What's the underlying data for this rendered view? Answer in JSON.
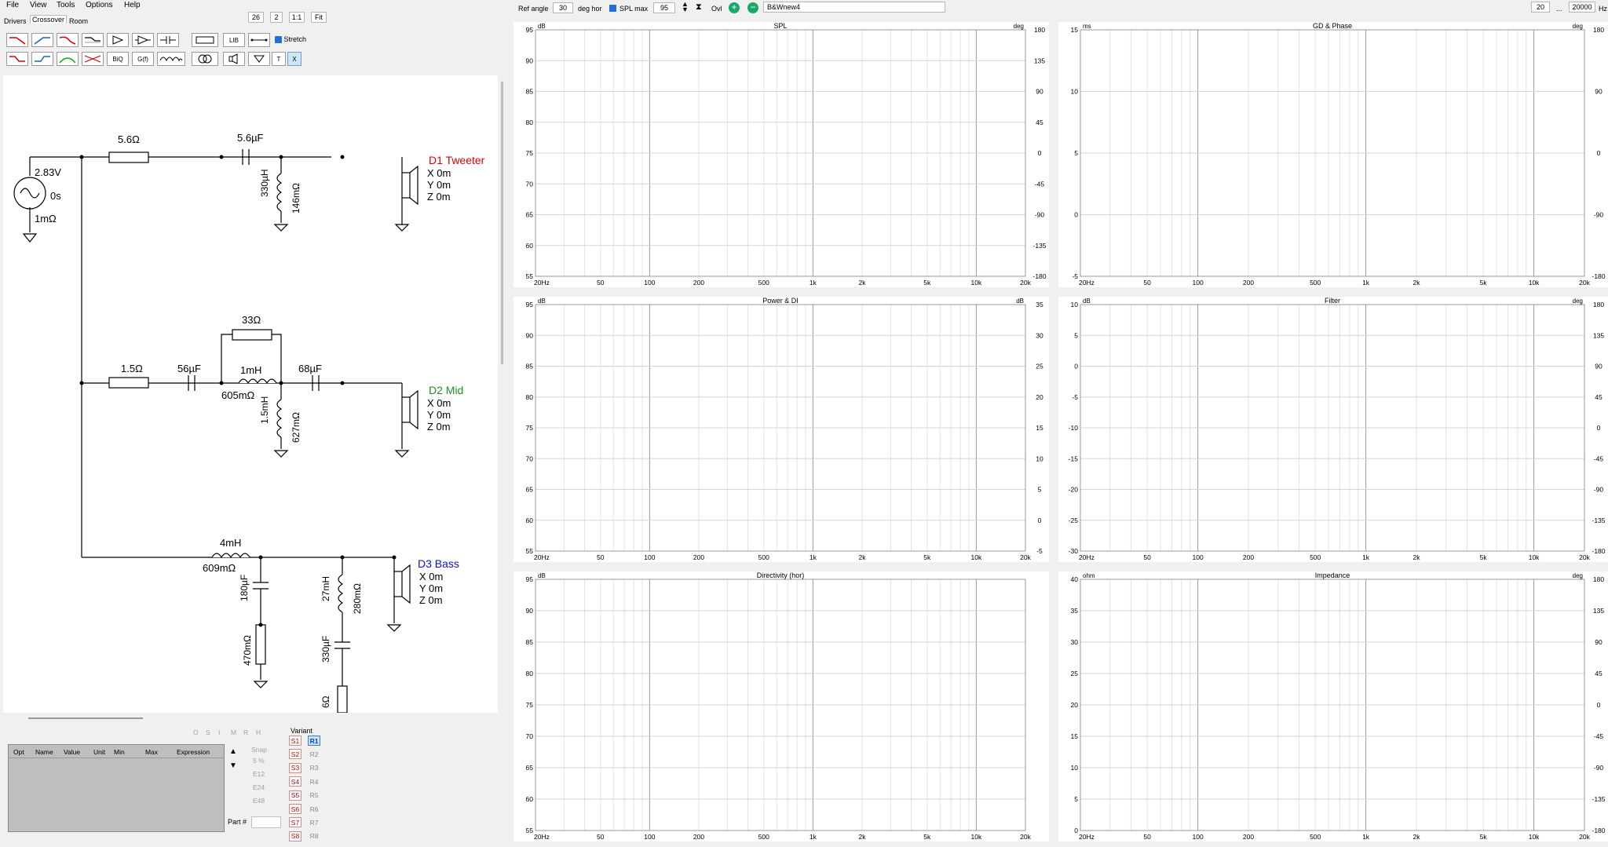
{
  "menu": [
    "File",
    "View",
    "Tools",
    "Options",
    "Help"
  ],
  "tabs": [
    "Drivers",
    "Crossover",
    "Room"
  ],
  "zoom": {
    "a": "26",
    "b": "2",
    "c": "1:1",
    "d": "Fit"
  },
  "toolbar": {
    "lib": "LIB",
    "biq": "BiQ",
    "gf": "G(f)",
    "t": "T",
    "x": "X",
    "stretch": "Stretch"
  },
  "topbar": {
    "ref_angle_label": "Ref angle",
    "ref_angle": "30",
    "deg_hor": "deg hor",
    "spl_max_label": "SPL max",
    "spl_max": "95",
    "ovl": "Ovl",
    "project": "B&Wnew4",
    "f_min": "20",
    "dots": "...",
    "f_max": "20000",
    "hz": "Hz"
  },
  "circuit": {
    "source": {
      "v": "2.83V",
      "t": "0s",
      "r": "1mΩ"
    },
    "tweeter": {
      "r1": "5.6Ω",
      "c1": "5.6µF",
      "l1": "330µH",
      "rl1": "146mΩ",
      "name": "D1 Tweeter",
      "x": "X 0m",
      "y": "Y 0m",
      "z": "Z 0m"
    },
    "mid": {
      "r1": "1.5Ω",
      "c1": "56µF",
      "r2": "33Ω",
      "l1": "1mH",
      "rl1": "605mΩ",
      "c2": "68µF",
      "l2": "1.5mH",
      "rl2": "627mΩ",
      "name": "D2 Mid",
      "x": "X 0m",
      "y": "Y 0m",
      "z": "Z 0m"
    },
    "bass": {
      "l1": "4mH",
      "rl1": "609mΩ",
      "c1": "180µF",
      "r1": "470mΩ",
      "l2": "27mH",
      "rl2": "280mΩ",
      "c2": "330µF",
      "r2": "6Ω",
      "name": "D3 Bass",
      "x": "X 0m",
      "y": "Y 0m",
      "z": "Z 0m"
    }
  },
  "table": {
    "headers": [
      "Opt",
      "Name",
      "Value",
      "Unit",
      "Min",
      "Max",
      "Expression"
    ],
    "letters": [
      "O",
      "S",
      "I",
      "M",
      "R",
      "H"
    ]
  },
  "snap": {
    "label": "Snap",
    "options": [
      "5 %",
      "E12",
      "E24",
      "E48"
    ],
    "selected": "E12"
  },
  "variant": {
    "label": "Variant",
    "s": [
      "S1",
      "S2",
      "S3",
      "S4",
      "S5",
      "S6",
      "S7",
      "S8"
    ],
    "r": [
      "R1",
      "R2",
      "R3",
      "R4",
      "R5",
      "R6",
      "R7",
      "R8"
    ]
  },
  "part_label": "Part #",
  "colors": {
    "tweeter": "#e00000",
    "mid": "#1f8f1f",
    "bass": "#1010d0",
    "magenta": "#ff00ff",
    "gray": "#555555"
  },
  "graphs": {
    "xticks": [
      "20Hz",
      "50",
      "100",
      "200",
      "500",
      "1k",
      "2k",
      "5k",
      "10k",
      "20k"
    ],
    "spl": {
      "title": "SPL",
      "lunit": "dB",
      "runit": "deg",
      "left": [
        "95",
        "90",
        "85",
        "80",
        "75",
        "70",
        "65",
        "60",
        "55"
      ],
      "right": [
        "180",
        "135",
        "90",
        "45",
        "0",
        "-45",
        "-90",
        "-135",
        "-180"
      ]
    },
    "gd": {
      "title": "GD & Phase",
      "lunit": "ms",
      "runit": "deg",
      "left": [
        "15",
        "10",
        "5",
        "0",
        "-5"
      ],
      "right": [
        "180",
        "90",
        "0",
        "-90",
        "-180"
      ]
    },
    "power": {
      "title": "Power & DI",
      "lunit": "dB",
      "runit": "dB",
      "left": [
        "95",
        "90",
        "85",
        "80",
        "75",
        "70",
        "65",
        "60",
        "55"
      ],
      "right": [
        "35",
        "30",
        "25",
        "20",
        "15",
        "10",
        "5",
        "0",
        "-5"
      ]
    },
    "filter": {
      "title": "Filter",
      "lunit": "dB",
      "runit": "deg",
      "left": [
        "10",
        "5",
        "0",
        "-5",
        "-10",
        "-15",
        "-20",
        "-25",
        "-30"
      ],
      "right": [
        "180",
        "135",
        "90",
        "45",
        "0",
        "-45",
        "-90",
        "-135",
        "-180"
      ]
    },
    "dir": {
      "title": "Directivity (hor)",
      "lunit": "dB",
      "runit": "",
      "left": [
        "95",
        "90",
        "85",
        "80",
        "75",
        "70",
        "65",
        "60",
        "55"
      ],
      "right": []
    },
    "imp": {
      "title": "Impedance",
      "lunit": "ohm",
      "runit": "deg",
      "left": [
        "40",
        "35",
        "30",
        "25",
        "20",
        "15",
        "10",
        "5",
        "0"
      ],
      "right": [
        "180",
        "135",
        "90",
        "45",
        "0",
        "-45",
        "-90",
        "-135",
        "-180"
      ]
    }
  }
}
